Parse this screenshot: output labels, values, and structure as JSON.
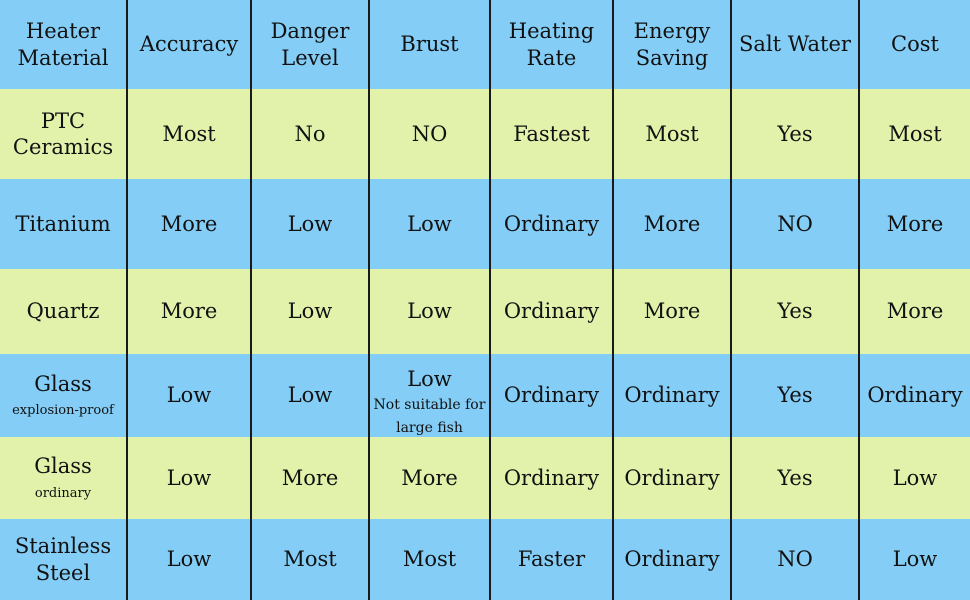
{
  "headers": [
    "Heater\nMaterial",
    "Accuracy",
    "Danger\nLevel",
    "Brust",
    "Heating\nRate",
    "Energy\nSaving",
    "Salt Water",
    "Cost"
  ],
  "rows": [
    {
      "material": "PTC\nCeramics",
      "material_note": "",
      "cells": [
        "Most",
        "No",
        "NO",
        "Fastest",
        "Most",
        "Yes",
        "Most"
      ]
    },
    {
      "material": "Titanium",
      "material_note": "",
      "cells": [
        "More",
        "Low",
        "Low",
        "Ordinary",
        "More",
        "NO",
        "More"
      ]
    },
    {
      "material": "Quartz",
      "material_note": "",
      "cells": [
        "More",
        "Low",
        "Low",
        "Ordinary",
        "More",
        "Yes",
        "More"
      ]
    },
    {
      "material": "Glass",
      "material_note": "explosion-proof",
      "cells": [
        "Low",
        "Low",
        "Low",
        "Ordinary",
        "Ordinary",
        "Yes",
        "Ordinary"
      ],
      "brust_note": "Not suitable for large fish"
    },
    {
      "material": "Glass",
      "material_note": "ordinary",
      "cells": [
        "Low",
        "More",
        "More",
        "Ordinary",
        "Ordinary",
        "Yes",
        "Low"
      ]
    },
    {
      "material": "Stainless\nSteel",
      "material_note": "",
      "cells": [
        "Low",
        "Most",
        "Most",
        "Faster",
        "Ordinary",
        "NO",
        "Low"
      ]
    }
  ],
  "colors": {
    "header": "#83cdf6",
    "row_green": "#e2f2ab",
    "row_blue": "#83cdf6",
    "divider": "#1a1a1a"
  }
}
